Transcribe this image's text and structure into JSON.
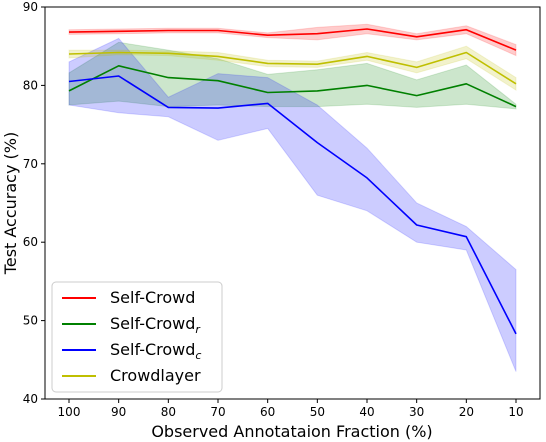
{
  "chart_data": {
    "type": "line",
    "title": "",
    "xlabel": "Observed Annotataion Fraction (%)",
    "ylabel": "Test Accuracy (%)",
    "x": [
      100,
      90,
      80,
      70,
      60,
      50,
      40,
      30,
      20,
      10
    ],
    "x_reversed": true,
    "xlim": [
      100,
      10
    ],
    "ylim": [
      40,
      90
    ],
    "yticks": [
      40,
      50,
      60,
      70,
      80,
      90
    ],
    "grid": false,
    "legend_position": "bottom-left",
    "series": [
      {
        "name": "Self-Crowd",
        "color": "#ff0000",
        "values": [
          86.8,
          86.9,
          87.0,
          87.0,
          86.4,
          86.6,
          87.2,
          86.2,
          87.1,
          84.5
        ],
        "lower": [
          86.5,
          86.6,
          86.7,
          86.7,
          86.1,
          85.8,
          86.6,
          85.8,
          86.6,
          83.8
        ],
        "upper": [
          87.1,
          87.2,
          87.3,
          87.3,
          86.7,
          87.4,
          87.8,
          86.6,
          87.6,
          85.2
        ]
      },
      {
        "name": "Self-Crowd",
        "subscript": "r",
        "color": "#008000",
        "values": [
          79.3,
          82.5,
          81.0,
          80.6,
          79.1,
          79.3,
          80.0,
          78.7,
          80.2,
          77.3
        ],
        "lower": [
          77.5,
          78.0,
          77.3,
          77.5,
          77.3,
          77.3,
          77.6,
          77.2,
          77.6,
          77.0
        ],
        "upper": [
          81.6,
          85.5,
          84.5,
          83.4,
          81.4,
          82.0,
          82.8,
          80.7,
          82.6,
          77.6
        ]
      },
      {
        "name": "Self-Crowd",
        "subscript": "c",
        "color": "#0000ff",
        "values": [
          80.5,
          81.2,
          77.2,
          77.1,
          77.7,
          72.7,
          68.2,
          62.2,
          60.7,
          48.3
        ],
        "lower": [
          77.5,
          76.5,
          76.0,
          73.0,
          74.5,
          66.0,
          64.0,
          60.0,
          59.0,
          43.5
        ],
        "upper": [
          83.0,
          86.0,
          78.5,
          81.5,
          81.0,
          77.5,
          72.0,
          65.0,
          62.0,
          56.5
        ]
      },
      {
        "name": "Crowdlayer",
        "color": "#bfbf00",
        "values": [
          84.0,
          84.2,
          84.1,
          83.7,
          82.8,
          82.7,
          83.7,
          82.3,
          84.2,
          80.2
        ],
        "lower": [
          83.5,
          83.9,
          83.8,
          83.2,
          82.4,
          82.3,
          83.2,
          81.6,
          83.4,
          79.4
        ],
        "upper": [
          84.5,
          84.5,
          84.4,
          84.2,
          83.2,
          83.1,
          84.2,
          83.0,
          85.0,
          81.0
        ]
      }
    ]
  }
}
